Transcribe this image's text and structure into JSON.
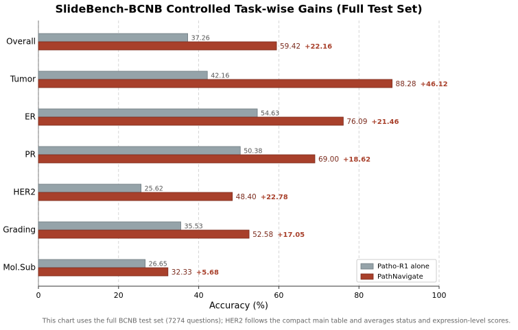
{
  "chart_data": {
    "type": "hbar",
    "title": "SlideBench-BCNB Controlled Task-wise Gains (Full Test Set)",
    "x_label": "Accuracy (%)",
    "note": "This chart uses the full BCNB test set (7274 questions); HER2 follows the compact main table and averages status and expression-level scores.",
    "categories": [
      "Overall",
      "Tumor",
      "ER",
      "PR",
      "HER2",
      "Grading",
      "Mol.Sub"
    ],
    "series": [
      {
        "name": "Patho-R1 alone",
        "color": "#95a3a9",
        "values": [
          37.26,
          42.16,
          54.63,
          50.38,
          25.62,
          35.53,
          26.65
        ],
        "value_labels": [
          "37.26",
          "42.16",
          "54.63",
          "50.38",
          "25.62",
          "35.53",
          "26.65"
        ]
      },
      {
        "name": "PathNavigate",
        "color": "#a8402b",
        "values": [
          59.42,
          88.28,
          76.09,
          69.0,
          48.4,
          52.58,
          32.33
        ],
        "value_labels": [
          "59.42",
          "88.28",
          "76.09",
          "69.00",
          "48.40",
          "52.58",
          "32.33"
        ]
      }
    ],
    "annotations": [
      "+22.16",
      "+46.12",
      "+21.46",
      "+18.62",
      "+22.78",
      "+17.05",
      "+5.68"
    ],
    "xlim": [
      0,
      100
    ],
    "xticks": [
      0,
      20,
      40,
      60,
      80,
      100
    ],
    "grid": true,
    "legend": "lower right"
  }
}
